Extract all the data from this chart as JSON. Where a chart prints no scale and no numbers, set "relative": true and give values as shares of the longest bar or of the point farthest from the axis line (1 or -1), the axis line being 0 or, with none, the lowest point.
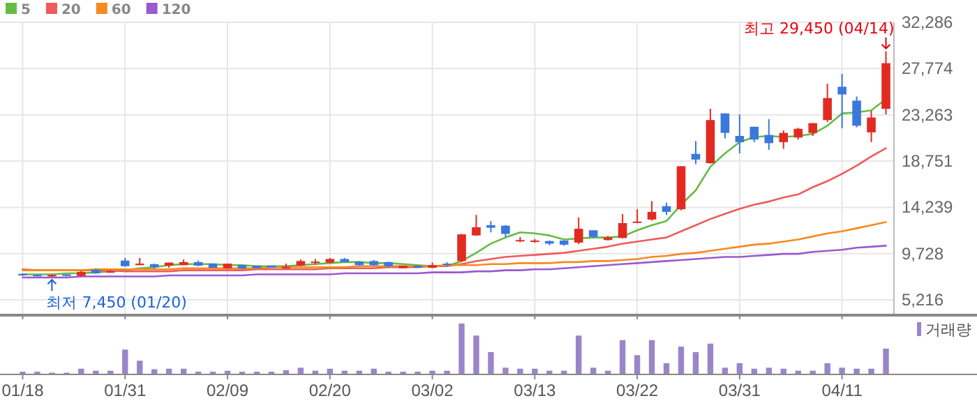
{
  "chart_data": [
    {
      "type": "candlestick",
      "tick_labels": "y",
      "grid": true,
      "legend": "top left",
      "categories": [
        null,
        null,
        null,
        null,
        null,
        null,
        null,
        null,
        null,
        null,
        null,
        null,
        null,
        null,
        null,
        null,
        null,
        null,
        null,
        null,
        null,
        null,
        null,
        null,
        null,
        null,
        null,
        null,
        null,
        null,
        null,
        null,
        null,
        null,
        null,
        null,
        null,
        null,
        null,
        null,
        null,
        null,
        null,
        null,
        null,
        null,
        null,
        null,
        null,
        null,
        null,
        null,
        null,
        null,
        null,
        null,
        null,
        null,
        null,
        null
      ],
      "ylim": [
        3860,
        32286
      ],
      "yticks": [
        {
          "value": 5216,
          "label": "5,216"
        },
        {
          "value": 9728,
          "label": "9,728"
        },
        {
          "value": 14239,
          "label": "14,239"
        },
        {
          "value": 18751,
          "label": "18,751"
        },
        {
          "value": 23263,
          "label": "23,263"
        },
        {
          "value": 27774,
          "label": "27,774"
        },
        {
          "value": 32286,
          "label": "32,286"
        }
      ],
      "ohlc": [
        [
          7750,
          7800,
          7550,
          7600
        ],
        [
          7650,
          7700,
          7500,
          7550
        ],
        [
          7500,
          7700,
          7450,
          7650
        ],
        [
          7700,
          7700,
          7500,
          7550
        ],
        [
          7550,
          8050,
          7500,
          7950
        ],
        [
          8150,
          8250,
          7750,
          7800
        ],
        [
          7950,
          8100,
          7850,
          8000
        ],
        [
          9050,
          9300,
          8450,
          8500
        ],
        [
          8600,
          9300,
          8600,
          8750
        ],
        [
          8700,
          8750,
          8250,
          8400
        ],
        [
          8550,
          8850,
          8350,
          8850
        ],
        [
          8600,
          9150,
          8600,
          8900
        ],
        [
          8900,
          9050,
          8500,
          8550
        ],
        [
          8750,
          8750,
          8350,
          8350
        ],
        [
          8300,
          8750,
          8250,
          8750
        ],
        [
          8600,
          8600,
          8200,
          8300
        ],
        [
          8550,
          8550,
          8300,
          8300
        ],
        [
          8550,
          8550,
          8350,
          8350
        ],
        [
          8300,
          8750,
          8300,
          8450
        ],
        [
          8550,
          9150,
          8500,
          9000
        ],
        [
          8850,
          9200,
          8650,
          8950
        ],
        [
          8850,
          9300,
          8800,
          9200
        ],
        [
          9200,
          9300,
          8850,
          8900
        ],
        [
          8950,
          9000,
          8550,
          8600
        ],
        [
          9000,
          9100,
          8550,
          8600
        ],
        [
          8900,
          8950,
          8350,
          8500
        ],
        [
          8300,
          8550,
          8300,
          8550
        ],
        [
          8550,
          8550,
          8350,
          8350
        ],
        [
          8350,
          8850,
          8300,
          8600
        ],
        [
          8750,
          8900,
          8500,
          8650
        ],
        [
          9000,
          11650,
          8900,
          11600
        ],
        [
          11500,
          13500,
          11450,
          12300
        ],
        [
          12500,
          12900,
          11800,
          12250
        ],
        [
          12450,
          12500,
          11350,
          11650
        ],
        [
          10950,
          11350,
          10850,
          11050
        ],
        [
          10900,
          11150,
          10800,
          11000
        ],
        [
          10950,
          11000,
          10550,
          10700
        ],
        [
          11000,
          11000,
          10500,
          10600
        ],
        [
          10800,
          13250,
          10650,
          12150
        ],
        [
          12000,
          12000,
          11250,
          11350
        ],
        [
          11050,
          11450,
          11000,
          11300
        ],
        [
          11250,
          13600,
          11200,
          12700
        ],
        [
          12750,
          14050,
          12700,
          12850
        ],
        [
          13050,
          14850,
          12950,
          13800
        ],
        [
          14350,
          14700,
          13500,
          13800
        ],
        [
          14050,
          18250,
          13950,
          18250
        ],
        [
          19450,
          20700,
          18450,
          18900
        ],
        [
          18550,
          23850,
          18500,
          22750
        ],
        [
          23400,
          23400,
          20950,
          21500
        ],
        [
          21200,
          23300,
          19500,
          20600
        ],
        [
          22100,
          22100,
          20600,
          20850
        ],
        [
          21300,
          22850,
          19850,
          20500
        ],
        [
          20600,
          21750,
          19950,
          21500
        ],
        [
          21050,
          22000,
          20850,
          21900
        ],
        [
          21500,
          22450,
          21200,
          22450
        ],
        [
          22750,
          26300,
          22550,
          24900
        ],
        [
          26000,
          27250,
          21950,
          25250
        ],
        [
          24650,
          25050,
          22050,
          22200
        ],
        [
          21550,
          23650,
          20600,
          23000
        ],
        [
          23850,
          29450,
          23300,
          28300
        ]
      ],
      "colors": [
        "#3a78dd",
        "#3a78dd",
        "#e12b22",
        "#3a78dd",
        "#e12b22",
        "#3a78dd",
        "#e12b22",
        "#3a78dd",
        "#e12b22",
        "#3a78dd",
        "#e12b22",
        "#e12b22",
        "#3a78dd",
        "#3a78dd",
        "#e12b22",
        "#3a78dd",
        "#3a78dd",
        "#3a78dd",
        "#e12b22",
        "#e12b22",
        "#e12b22",
        "#e12b22",
        "#3a78dd",
        "#3a78dd",
        "#3a78dd",
        "#3a78dd",
        "#e12b22",
        "#3a78dd",
        "#e12b22",
        "#3a78dd",
        "#e12b22",
        "#e12b22",
        "#3a78dd",
        "#3a78dd",
        "#e12b22",
        "#e12b22",
        "#3a78dd",
        "#3a78dd",
        "#e12b22",
        "#3a78dd",
        "#e12b22",
        "#e12b22",
        "#e12b22",
        "#e12b22",
        "#3a78dd",
        "#e12b22",
        "#3a78dd",
        "#e12b22",
        "#3a78dd",
        "#3a78dd",
        "#3a78dd",
        "#3a78dd",
        "#e12b22",
        "#e12b22",
        "#e12b22",
        "#e12b22",
        "#3a78dd",
        "#3a78dd",
        "#e12b22",
        "#e12b22"
      ],
      "series": [
        {
          "name": "5",
          "type": "line",
          "color": "#66bb44",
          "values": [
            7700,
            7700,
            7700,
            7800,
            7800,
            7900,
            8000,
            8100,
            8300,
            8400,
            8600,
            8700,
            8700,
            8700,
            8600,
            8600,
            8500,
            8500,
            8500,
            8600,
            8700,
            8800,
            8900,
            8900,
            8800,
            8800,
            8700,
            8600,
            8500,
            8500,
            9000,
            9800,
            10700,
            11300,
            11800,
            11700,
            11500,
            11100,
            11200,
            11300,
            11300,
            11400,
            12000,
            12500,
            12900,
            14500,
            15900,
            18200,
            19500,
            20600,
            21100,
            21200,
            21100,
            21200,
            21400,
            22200,
            23400,
            23500,
            23700,
            24800
          ]
        },
        {
          "name": "20",
          "type": "line",
          "color": "#f05a5a",
          "values": [
            8200,
            8100,
            8100,
            8100,
            8100,
            8100,
            8100,
            8000,
            8000,
            8000,
            8000,
            8100,
            8100,
            8100,
            8100,
            8100,
            8200,
            8200,
            8200,
            8200,
            8200,
            8300,
            8300,
            8300,
            8300,
            8400,
            8400,
            8400,
            8500,
            8500,
            8700,
            9000,
            9200,
            9400,
            9500,
            9600,
            9700,
            9800,
            10000,
            10200,
            10400,
            10700,
            10900,
            11100,
            11300,
            11900,
            12500,
            13100,
            13600,
            14100,
            14500,
            14800,
            15200,
            15500,
            16200,
            16800,
            17500,
            18300,
            19200,
            20000
          ]
        },
        {
          "name": "60",
          "type": "line",
          "color": "#f58a1f",
          "values": [
            8100,
            8100,
            8100,
            8100,
            8100,
            8200,
            8200,
            8200,
            8200,
            8200,
            8200,
            8300,
            8300,
            8300,
            8300,
            8300,
            8300,
            8400,
            8400,
            8400,
            8400,
            8400,
            8400,
            8500,
            8500,
            8500,
            8500,
            8500,
            8500,
            8600,
            8600,
            8600,
            8700,
            8700,
            8800,
            8800,
            8800,
            8900,
            8900,
            9000,
            9000,
            9100,
            9200,
            9400,
            9500,
            9700,
            9800,
            10000,
            10200,
            10400,
            10600,
            10700,
            10900,
            11100,
            11400,
            11700,
            11900,
            12200,
            12500,
            12800
          ]
        },
        {
          "name": "120",
          "type": "line",
          "color": "#9b59d0",
          "values": [
            7400,
            7400,
            7400,
            7400,
            7500,
            7500,
            7500,
            7500,
            7500,
            7500,
            7600,
            7600,
            7600,
            7600,
            7600,
            7600,
            7700,
            7700,
            7700,
            7700,
            7700,
            7700,
            7800,
            7800,
            7800,
            7800,
            7800,
            7800,
            7900,
            7900,
            7900,
            8000,
            8000,
            8100,
            8100,
            8200,
            8200,
            8300,
            8400,
            8500,
            8600,
            8700,
            8800,
            8900,
            9000,
            9100,
            9200,
            9300,
            9400,
            9400,
            9500,
            9600,
            9700,
            9700,
            9900,
            10000,
            10100,
            10300,
            10400,
            10500
          ]
        }
      ],
      "annotations": [
        "최고 29,450 (04/14)",
        "최저 7,450 (01/20)"
      ]
    },
    {
      "type": "bar",
      "relative": true,
      "legend": "top right",
      "categories": [
        "01/18",
        null,
        null,
        null,
        null,
        null,
        null,
        "01/31",
        null,
        null,
        null,
        null,
        null,
        null,
        "02/09",
        null,
        null,
        null,
        null,
        null,
        null,
        "02/20",
        null,
        null,
        null,
        null,
        null,
        null,
        "03/02",
        null,
        null,
        null,
        null,
        null,
        null,
        "03/13",
        null,
        null,
        null,
        null,
        null,
        null,
        "03/22",
        null,
        null,
        null,
        null,
        null,
        null,
        "03/31",
        null,
        null,
        null,
        null,
        null,
        null,
        "04/11",
        null,
        null,
        null
      ],
      "series": [
        {
          "name": "거래량",
          "color": "#9b85c9",
          "values": [
            0.04,
            0.04,
            0.02,
            0.02,
            0.1,
            0.06,
            0.06,
            0.48,
            0.26,
            0.09,
            0.1,
            0.1,
            0.04,
            0.04,
            0.06,
            0.04,
            0.04,
            0.04,
            0.07,
            0.12,
            0.06,
            0.1,
            0.06,
            0.06,
            0.1,
            0.04,
            0.04,
            0.04,
            0.06,
            0.06,
            1,
            0.76,
            0.43,
            0.12,
            0.1,
            0.1,
            0.06,
            0.06,
            0.76,
            0.12,
            0.06,
            0.67,
            0.37,
            0.67,
            0.21,
            0.54,
            0.43,
            0.6,
            0.12,
            0.21,
            0.1,
            0.12,
            0.1,
            0.06,
            0.06,
            0.21,
            0.12,
            0.1,
            0.1,
            0.5
          ]
        }
      ]
    }
  ]
}
